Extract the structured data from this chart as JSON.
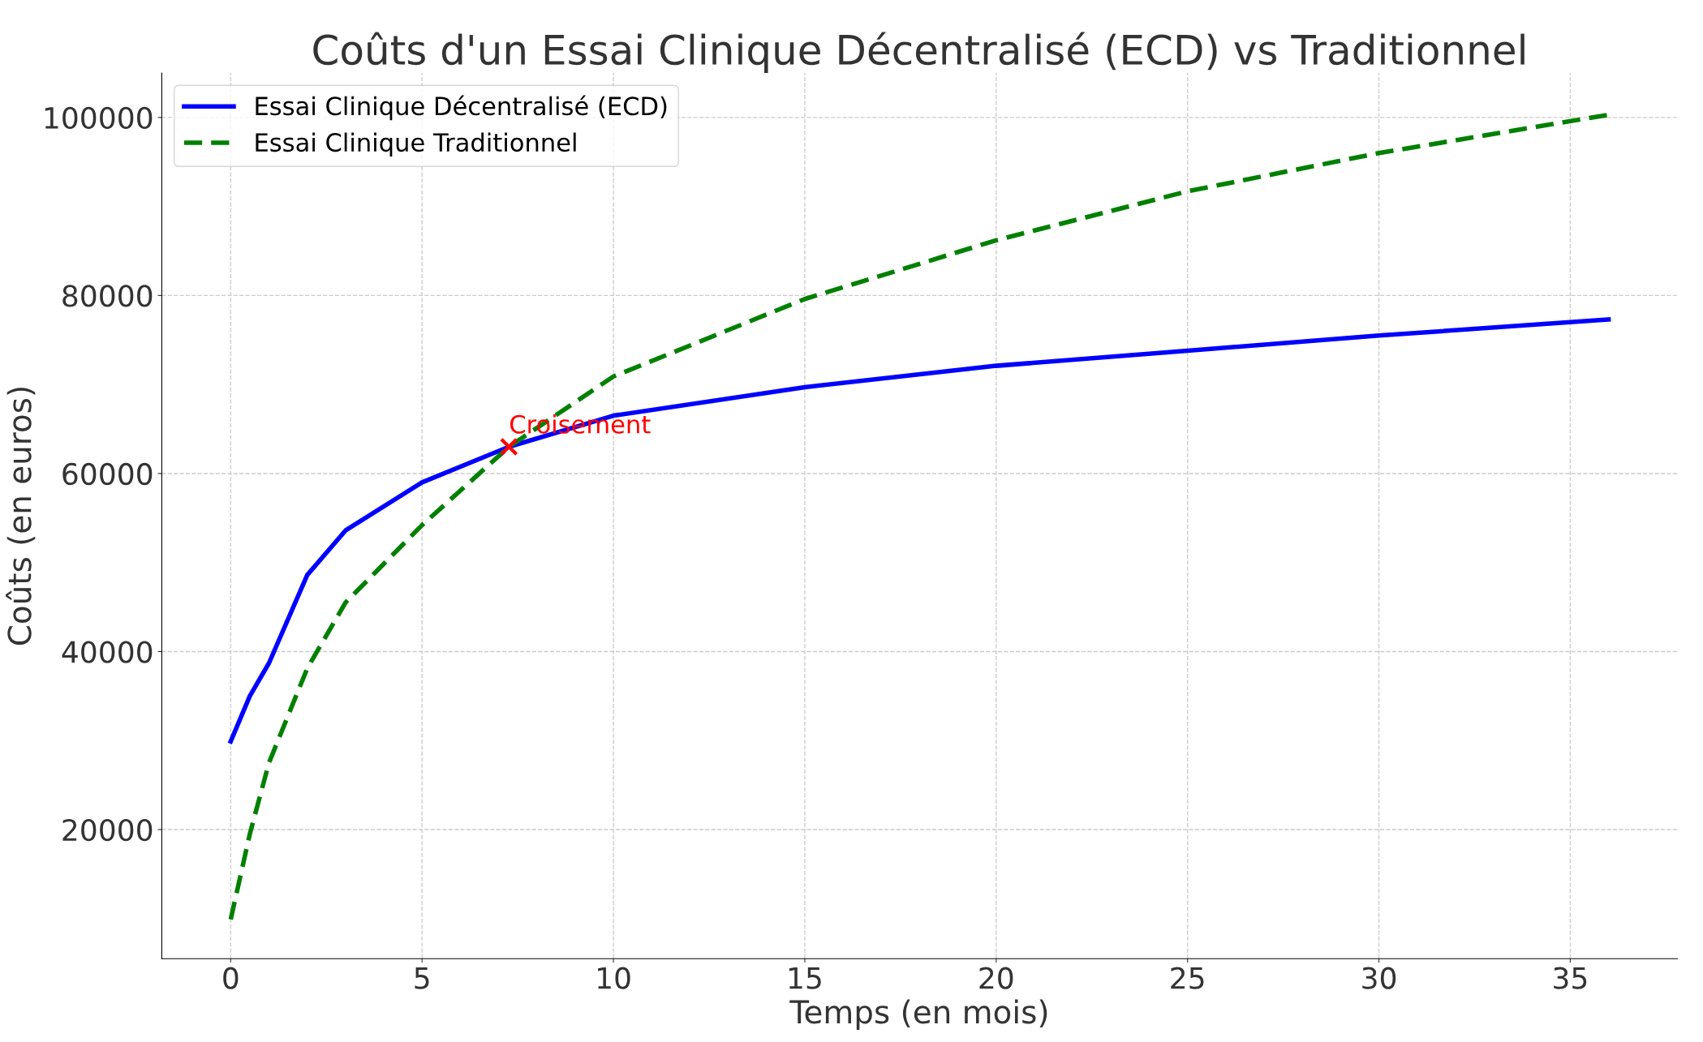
{
  "chart_data": {
    "type": "line",
    "title": "Coûts d'un Essai Clinique Décentralisé (ECD) vs Traditionnel",
    "xlabel": "Temps (en mois)",
    "ylabel": "Coûts (en euros)",
    "xlim": [
      -1.8,
      37.8
    ],
    "ylim": [
      5500,
      105000
    ],
    "xticks": [
      0,
      5,
      10,
      15,
      20,
      25,
      30,
      35
    ],
    "yticks": [
      20000,
      40000,
      60000,
      80000,
      100000
    ],
    "grid": true,
    "legend": "top left",
    "series": [
      {
        "name": "Essai Clinique Décentralisé (ECD)",
        "color": "#0000ff",
        "line_style": "solid",
        "x": [
          0,
          0.5,
          1,
          2,
          3,
          5,
          7.27,
          10,
          15,
          20,
          25,
          30,
          36
        ],
        "values": [
          29900,
          35000,
          38700,
          48600,
          53600,
          59000,
          63000,
          66500,
          69700,
          72100,
          73800,
          75500,
          77300
        ]
      },
      {
        "name": "Essai Clinique Traditionnel",
        "color": "#008000",
        "line_style": "dashed",
        "x": [
          0,
          0.5,
          1,
          2,
          3,
          5,
          7.27,
          10,
          15,
          20,
          25,
          30,
          36
        ],
        "values": [
          9900,
          19500,
          27500,
          38100,
          45500,
          54200,
          63000,
          70900,
          79600,
          86200,
          91700,
          96000,
          100300
        ]
      },
      {
        "type": "scatter",
        "color": "#ff0000",
        "marker": "cross",
        "x": [
          7.27
        ],
        "values": [
          63000
        ]
      }
    ],
    "annotations": [
      {
        "text": "Croisement",
        "x": 7.27,
        "y": 63000
      }
    ]
  }
}
